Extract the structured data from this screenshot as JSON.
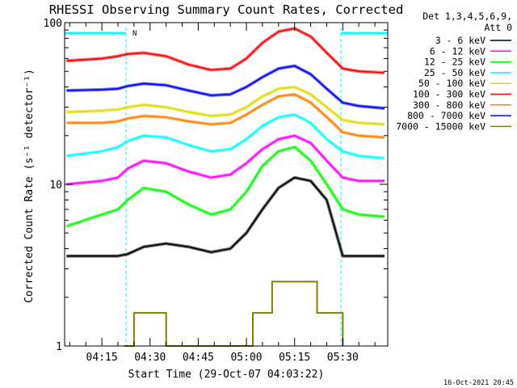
{
  "chart_data": {
    "type": "line",
    "title": "RHESSI Observing Summary Count Rates, Corrected",
    "xlabel": "Start Time (29-Oct-07 04:03:22)",
    "ylabel": "Corrected Count Rate (s⁻¹ detector⁻¹)",
    "y_scale": "log",
    "ylim": [
      1,
      100
    ],
    "y_ticks": [
      {
        "value": 1,
        "label": "1"
      },
      {
        "value": 10,
        "label": "10"
      },
      {
        "value": 100,
        "label": "100"
      }
    ],
    "x_ticks": [
      "04:15",
      "04:30",
      "04:45",
      "05:00",
      "05:15",
      "05:30"
    ],
    "x_start_minutes": 243.4,
    "x_end_minutes": 344,
    "x_tick_minutes": [
      255,
      270,
      285,
      300,
      315,
      330
    ],
    "legend_header": [
      "Det 1,3,4,5,6,9,",
      "Att 0"
    ],
    "legend_position": "right",
    "annotations": [
      {
        "text": "N",
        "x_minutes": 262.5
      },
      {
        "text": "16-Oct-2021 20:45",
        "position": "bottom-right"
      }
    ],
    "night_intervals_minutes": [
      [
        243.4,
        262.5
      ],
      [
        329.4,
        344
      ]
    ],
    "series": [
      {
        "name": "3 - 6 keV",
        "color": "#000000",
        "x": [
          244,
          255,
          260,
          263,
          268,
          275,
          282,
          289,
          295,
          300,
          305,
          310,
          315,
          320,
          325,
          330,
          335,
          343
        ],
        "y": [
          3.6,
          3.6,
          3.6,
          3.7,
          4.1,
          4.3,
          4.1,
          3.8,
          4.0,
          5.0,
          7.0,
          9.5,
          11.0,
          10.5,
          8.0,
          3.6,
          3.6,
          3.6
        ]
      },
      {
        "name": "6 - 12 keV",
        "color": "#ff00ff",
        "x": [
          244,
          255,
          260,
          263,
          268,
          275,
          282,
          289,
          295,
          300,
          305,
          310,
          315,
          320,
          325,
          330,
          335,
          343
        ],
        "y": [
          10.0,
          10.5,
          11.0,
          12.5,
          14.0,
          13.5,
          12.0,
          11.0,
          11.5,
          13.5,
          16.5,
          19.0,
          20.0,
          18.0,
          14.0,
          11.0,
          10.5,
          10.5
        ]
      },
      {
        "name": "12 - 25 keV",
        "color": "#00ff00",
        "x": [
          244,
          255,
          260,
          263,
          268,
          275,
          282,
          289,
          295,
          300,
          305,
          310,
          315,
          320,
          325,
          330,
          335,
          343
        ],
        "y": [
          5.5,
          6.5,
          7.0,
          8.0,
          9.5,
          9.0,
          7.5,
          6.5,
          7.0,
          9.0,
          13.0,
          16.0,
          17.0,
          14.0,
          10.0,
          7.0,
          6.5,
          6.3
        ]
      },
      {
        "name": "25 - 50 keV",
        "color": "#00ffff",
        "x": [
          244,
          255,
          260,
          263,
          268,
          275,
          282,
          289,
          295,
          300,
          305,
          310,
          315,
          320,
          325,
          330,
          335,
          343
        ],
        "y": [
          15.0,
          16.0,
          17.0,
          18.5,
          20.0,
          19.5,
          17.5,
          16.0,
          16.5,
          19.0,
          23.0,
          26.0,
          27.0,
          24.0,
          19.0,
          16.0,
          15.0,
          14.5
        ]
      },
      {
        "name": "50 - 100 keV",
        "color": "#dddd00",
        "x": [
          244,
          255,
          260,
          263,
          268,
          275,
          282,
          289,
          295,
          300,
          305,
          310,
          315,
          320,
          325,
          330,
          335,
          343
        ],
        "y": [
          28.0,
          28.5,
          29.0,
          30.0,
          31.0,
          30.0,
          28.0,
          26.5,
          27.0,
          30.0,
          35.0,
          39.0,
          40.0,
          36.0,
          30.0,
          25.0,
          24.0,
          23.5
        ]
      },
      {
        "name": "100 - 300 keV",
        "color": "#ff0000",
        "x": [
          244,
          255,
          260,
          263,
          268,
          275,
          282,
          289,
          295,
          300,
          305,
          310,
          315,
          320,
          325,
          330,
          335,
          343
        ],
        "y": [
          58.0,
          60.0,
          62.0,
          64.0,
          65.0,
          62.0,
          55.0,
          51.0,
          52.0,
          60.0,
          75.0,
          88.0,
          92.0,
          82.0,
          65.0,
          52.0,
          50.0,
          49.0
        ]
      },
      {
        "name": "300 - 800 keV",
        "color": "#ff8000",
        "x": [
          244,
          255,
          260,
          263,
          268,
          275,
          282,
          289,
          295,
          300,
          305,
          310,
          315,
          320,
          325,
          330,
          335,
          343
        ],
        "y": [
          24.0,
          24.0,
          24.5,
          25.5,
          26.5,
          26.0,
          24.5,
          23.5,
          24.0,
          27.0,
          31.0,
          35.0,
          36.0,
          32.0,
          26.0,
          21.0,
          20.0,
          19.5
        ]
      },
      {
        "name": "800 - 7000 keV",
        "color": "#0000ff",
        "x": [
          244,
          255,
          260,
          263,
          268,
          275,
          282,
          289,
          295,
          300,
          305,
          310,
          315,
          320,
          325,
          330,
          335,
          343
        ],
        "y": [
          38.0,
          38.5,
          39.0,
          40.5,
          42.0,
          41.0,
          38.0,
          35.5,
          36.0,
          40.0,
          46.0,
          52.0,
          54.0,
          48.0,
          39.0,
          32.0,
          30.5,
          29.5
        ]
      },
      {
        "name": "7000 - 15000 keV",
        "color": "#808000",
        "x": [
          262,
          265,
          270,
          275,
          300,
          302,
          305,
          308,
          310,
          314,
          318,
          322,
          326,
          330
        ],
        "y": [
          1.0,
          1.6,
          1.6,
          1.0,
          1.0,
          1.6,
          1.6,
          2.5,
          2.5,
          2.5,
          2.5,
          1.6,
          1.6,
          1.0
        ]
      }
    ]
  }
}
